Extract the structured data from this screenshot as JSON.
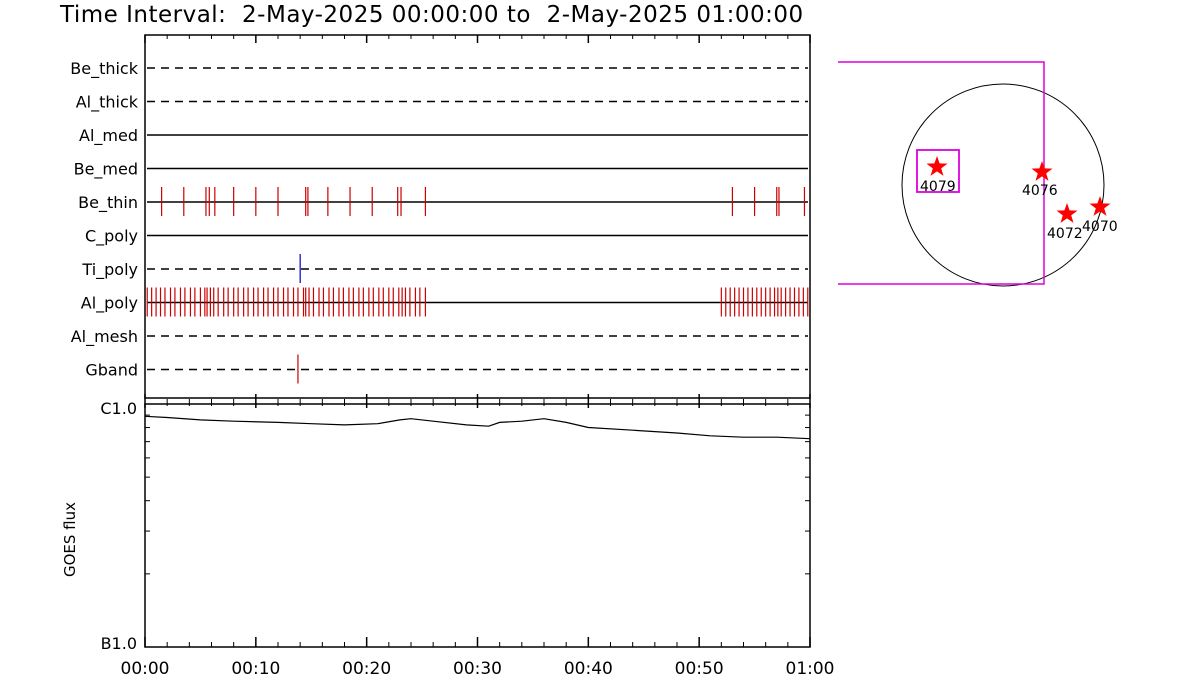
{
  "title": "Time Interval:  2-May-2025 00:00:00 to  2-May-2025 01:00:00",
  "colors": {
    "axis": "#000000",
    "event_red": "#cc0000",
    "event_blue": "#0000cc",
    "fov_magenta": "#dd00dd",
    "star_red": "#ff0000"
  },
  "chart_data": [
    {
      "type": "timeline",
      "x_tick_labels": [
        "00:00",
        "00:10",
        "00:20",
        "00:30",
        "00:40",
        "00:50",
        "01:00"
      ],
      "xlim_minutes": [
        0,
        60
      ],
      "channels": [
        {
          "name": "Be_thick",
          "style": "dashed",
          "events_min": [],
          "event_color": ""
        },
        {
          "name": "Al_thick",
          "style": "dashed",
          "events_min": [],
          "event_color": ""
        },
        {
          "name": "Al_med",
          "style": "solid",
          "events_min": [],
          "event_color": ""
        },
        {
          "name": "Be_med",
          "style": "solid",
          "events_min": [],
          "event_color": ""
        },
        {
          "name": "Be_thin",
          "style": "solid",
          "event_color": "red",
          "events_min": [
            1.5,
            3.5,
            5.5,
            5.8,
            6.3,
            8.0,
            10.0,
            12.0,
            14.5,
            14.7,
            16.5,
            18.5,
            20.5,
            22.8,
            23.1,
            25.3,
            53.0,
            55.0,
            57.0,
            57.2,
            59.5
          ]
        },
        {
          "name": "C_poly",
          "style": "solid",
          "events_min": [],
          "event_color": ""
        },
        {
          "name": "Ti_poly",
          "style": "dashed",
          "event_color": "blue",
          "events_min": [
            14.0
          ]
        },
        {
          "name": "Al_poly",
          "style": "solid",
          "event_color": "red",
          "events_min": [
            0.2,
            0.6,
            1.0,
            1.4,
            1.8,
            2.3,
            2.7,
            3.2,
            3.6,
            4.1,
            4.5,
            5.0,
            5.4,
            5.6,
            5.9,
            6.2,
            6.6,
            7.1,
            7.5,
            8.0,
            8.4,
            8.9,
            9.3,
            9.8,
            10.2,
            10.7,
            11.1,
            11.6,
            12.0,
            12.5,
            12.9,
            13.4,
            13.8,
            14.3,
            14.5,
            14.8,
            15.2,
            15.7,
            16.1,
            16.6,
            17.0,
            17.5,
            17.9,
            18.4,
            18.8,
            19.3,
            19.7,
            20.2,
            20.6,
            21.1,
            21.5,
            22.0,
            22.4,
            22.9,
            23.2,
            23.5,
            23.9,
            24.4,
            24.8,
            25.3,
            52.0,
            52.4,
            52.8,
            53.2,
            53.6,
            54.0,
            54.4,
            54.8,
            55.2,
            55.6,
            56.0,
            56.4,
            56.8,
            57.1,
            57.4,
            57.8,
            58.2,
            58.6,
            59.0,
            59.4,
            59.8
          ]
        },
        {
          "name": "Al_mesh",
          "style": "dashed",
          "events_min": [],
          "event_color": ""
        },
        {
          "name": "Gband",
          "style": "dashed",
          "event_color": "red",
          "events_min": [
            13.8
          ]
        }
      ]
    },
    {
      "type": "line",
      "ylabel": "GOES flux",
      "y_tick_labels": [
        "C1.0",
        "B1.0"
      ],
      "ylim": [
        1e-07,
        1e-06
      ],
      "yscale": "log",
      "x_tick_labels": [
        "00:00",
        "00:10",
        "00:20",
        "00:30",
        "00:40",
        "00:50",
        "01:00"
      ],
      "x_min": [
        0,
        2,
        5,
        8,
        12,
        15,
        18,
        21,
        23,
        24,
        26,
        29,
        31,
        32,
        34,
        36,
        38,
        40,
        44,
        48,
        51,
        54,
        57,
        60
      ],
      "y_flux": [
        8.9e-07,
        8.8e-07,
        8.6e-07,
        8.5e-07,
        8.4e-07,
        8.3e-07,
        8.2e-07,
        8.3e-07,
        8.6e-07,
        8.7e-07,
        8.5e-07,
        8.2e-07,
        8.1e-07,
        8.4e-07,
        8.5e-07,
        8.7e-07,
        8.4e-07,
        8e-07,
        7.8e-07,
        7.6e-07,
        7.4e-07,
        7.3e-07,
        7.3e-07,
        7.2e-07
      ]
    },
    {
      "type": "scatter",
      "description_kind": "solar-disk",
      "points": [
        {
          "label": "4079"
        },
        {
          "label": "4076"
        },
        {
          "label": "4072"
        },
        {
          "label": "4070"
        }
      ]
    }
  ]
}
